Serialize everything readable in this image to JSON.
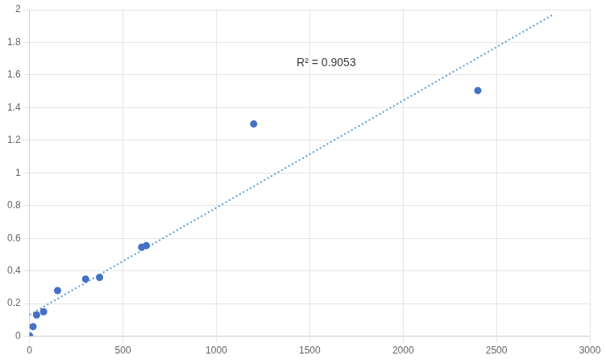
{
  "chart_data": {
    "type": "scatter",
    "series": [
      {
        "type": "scatter",
        "color": "#4472C4",
        "marker": "circle",
        "x": [
          0,
          18.75,
          37.5,
          75,
          150,
          300,
          375,
          600,
          625,
          1200,
          2400
        ],
        "values": [
          0.003,
          0.059,
          0.13,
          0.15,
          0.28,
          0.35,
          0.36,
          0.545,
          0.555,
          1.3,
          1.505
        ]
      },
      {
        "type": "line",
        "line_style": "dotted",
        "color": "#5B9BD5",
        "x": [
          0,
          2800
        ],
        "values": [
          0.13138,
          1.96786
        ]
      }
    ],
    "annotations": [
      {
        "text": "R² = 0.9053",
        "x": 1430,
        "y": 1.64
      }
    ],
    "xlim": [
      0,
      3000
    ],
    "xticks": [
      0,
      500,
      1000,
      1500,
      2000,
      2500,
      3000
    ],
    "ylim": [
      0,
      2
    ],
    "yticks": [
      0,
      0.2,
      0.4,
      0.6,
      0.8,
      1,
      1.2,
      1.4,
      1.6,
      1.8,
      2
    ],
    "grid": true
  }
}
